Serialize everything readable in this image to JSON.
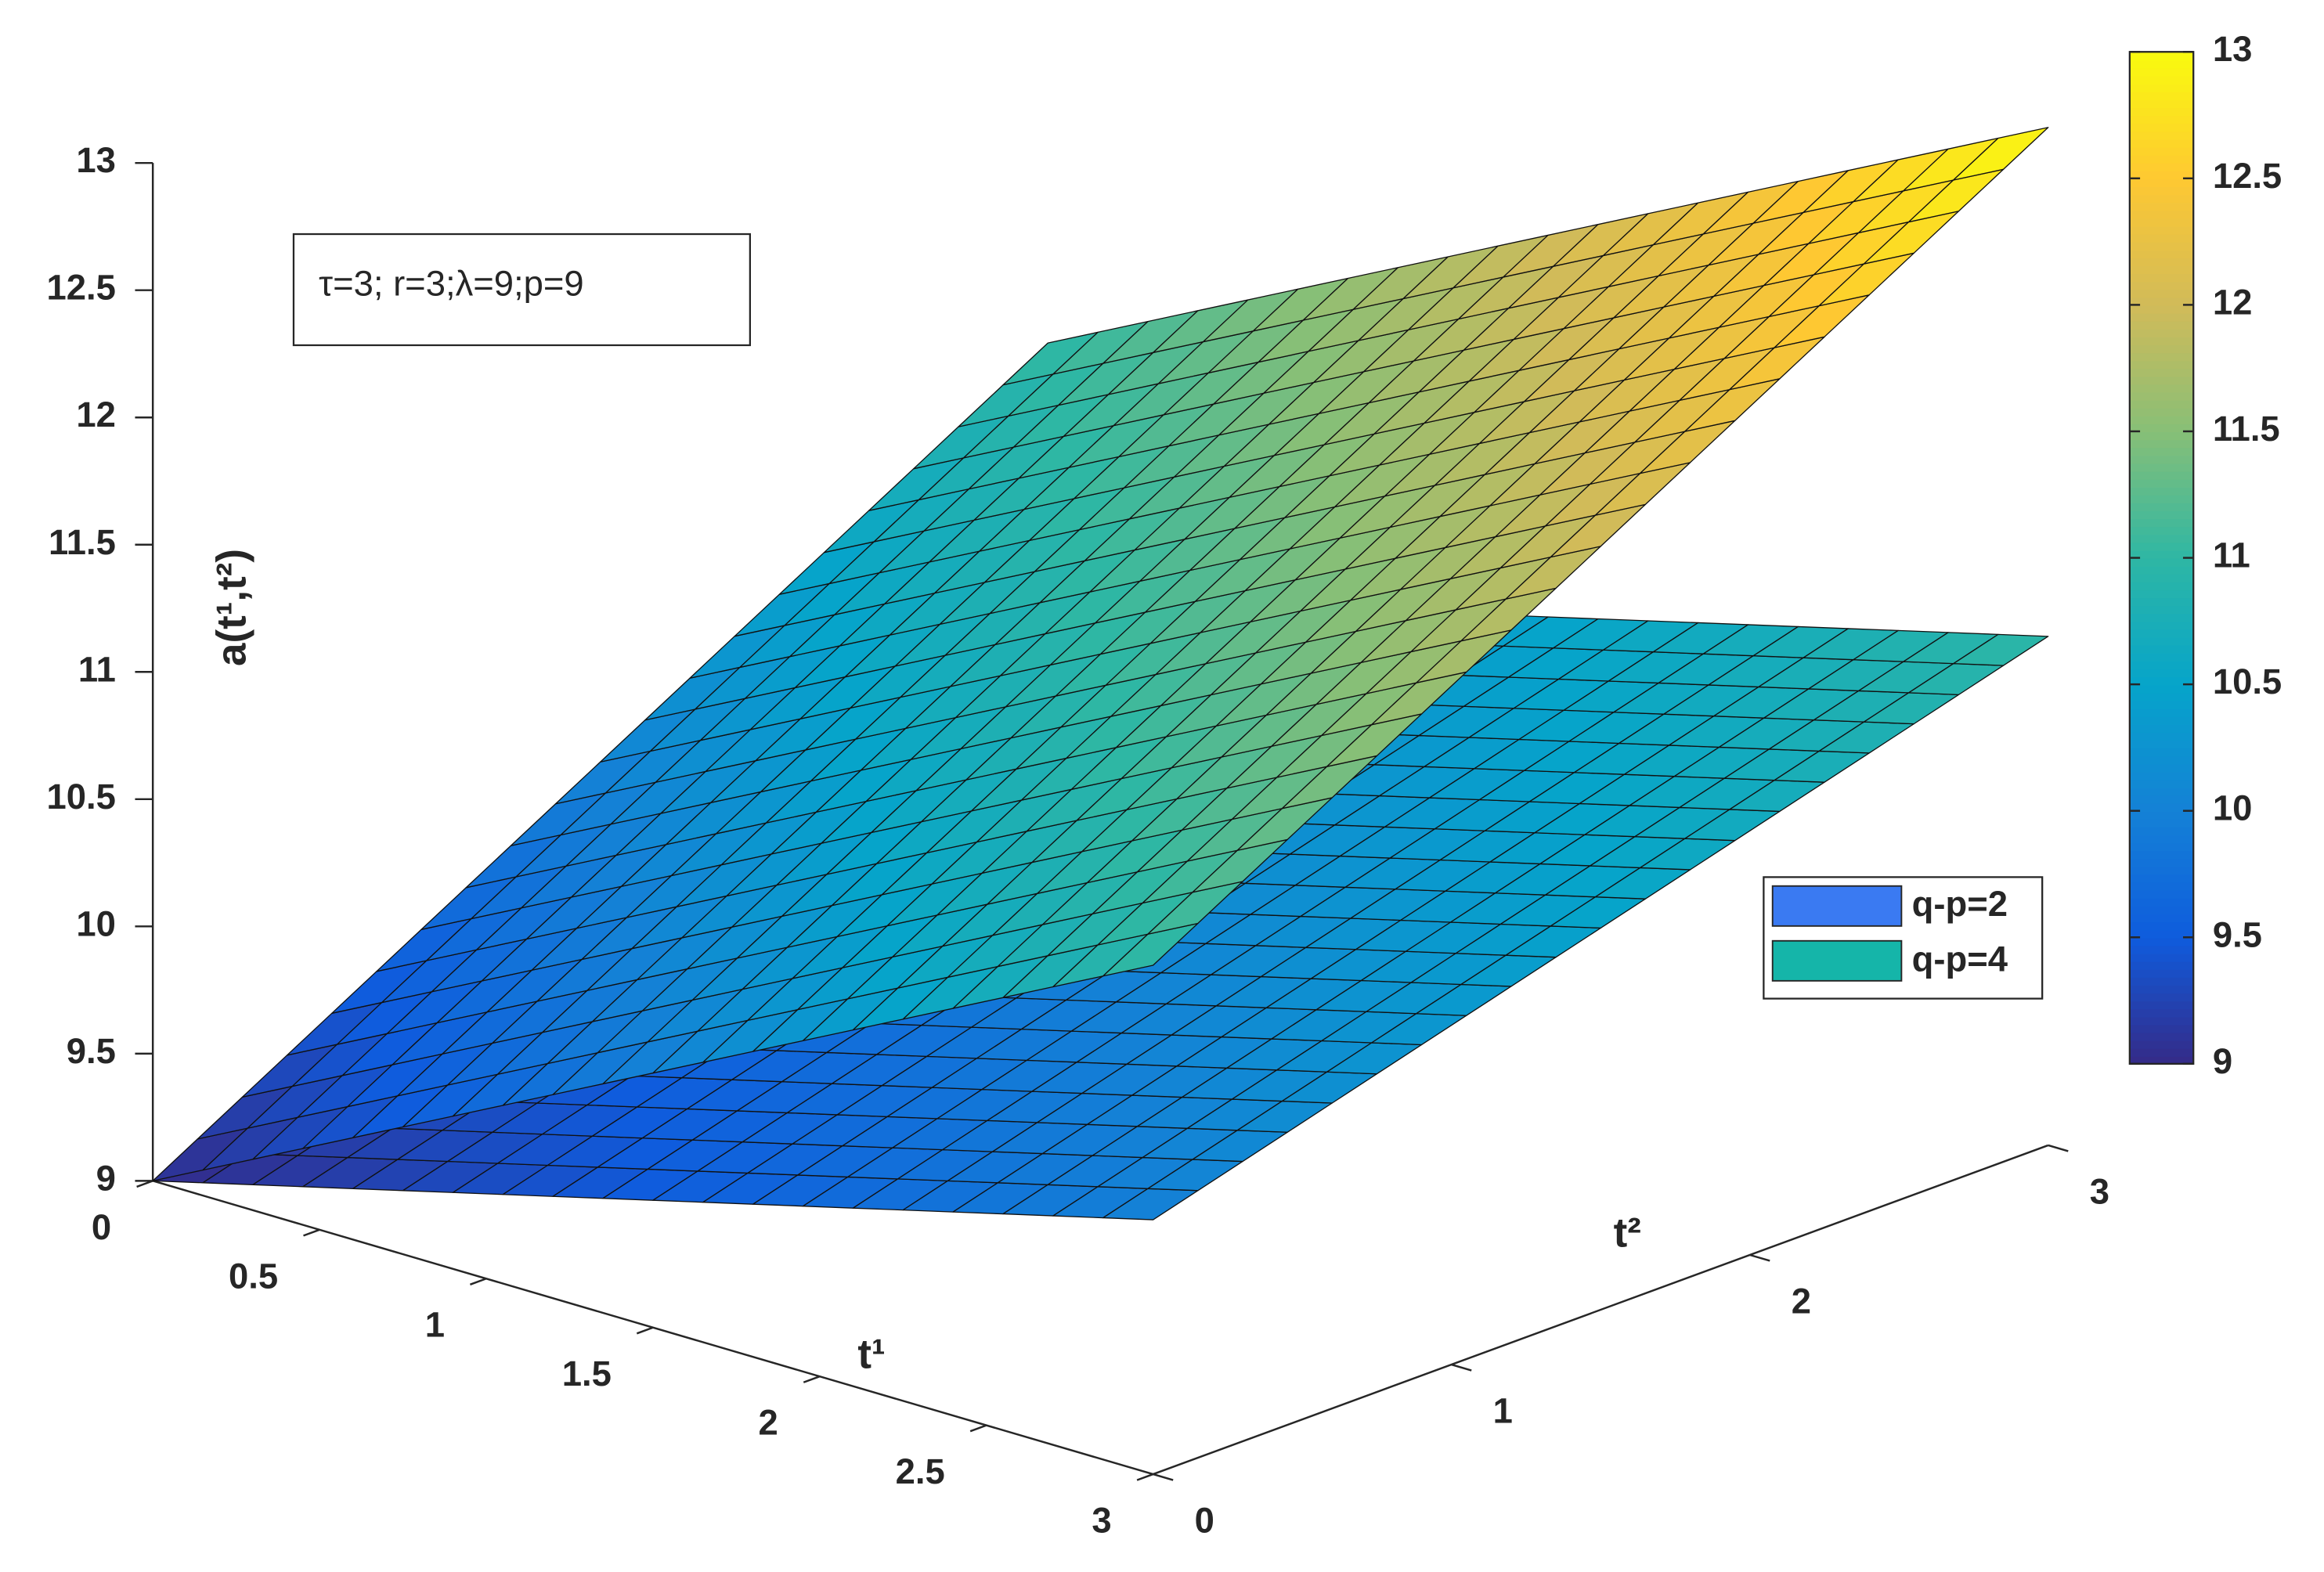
{
  "chart_data": {
    "type": "surface",
    "xlabel": "t¹",
    "ylabel": "t²",
    "zlabel": "a(t¹,t²)",
    "annotation": "τ=3; r=3;λ=9;p=9",
    "xlim": [
      0,
      3
    ],
    "ylim": [
      0,
      3
    ],
    "zlim": [
      9,
      13
    ],
    "xticks": [
      0,
      0.5,
      1,
      1.5,
      2,
      2.5,
      3
    ],
    "yticks": [
      0,
      1,
      2,
      3
    ],
    "zticks": [
      9,
      9.5,
      10,
      10.5,
      11,
      11.5,
      12,
      12.5,
      13
    ],
    "grid": false,
    "legend": "east",
    "clim": [
      9,
      13
    ],
    "cticks": [
      9,
      9.5,
      10,
      10.5,
      11,
      11.5,
      12,
      12.5,
      13
    ],
    "colormap": [
      "#352a87",
      "#0f5cdd",
      "#1481d6",
      "#06a4ca",
      "#2eb7a4",
      "#87bf77",
      "#d1bb59",
      "#fec832",
      "#f9fb0e"
    ],
    "x": [
      0,
      0.15,
      0.3,
      0.45,
      0.6,
      0.75,
      0.9,
      1.05,
      1.2,
      1.35,
      1.5,
      1.65,
      1.8,
      1.95,
      2.1,
      2.25,
      2.4,
      2.55,
      2.7,
      2.85,
      3
    ],
    "y": [
      0,
      0.15,
      0.3,
      0.45,
      0.6,
      0.75,
      0.9,
      1.05,
      1.2,
      1.35,
      1.5,
      1.65,
      1.8,
      1.95,
      2.1,
      2.25,
      2.4,
      2.55,
      2.7,
      2.85,
      3
    ],
    "series": [
      {
        "name": "q-p=2",
        "color": "#3a7af2",
        "z": [
          [
            9,
            9.05,
            9.1,
            9.15,
            9.2,
            9.25,
            9.3,
            9.35,
            9.4,
            9.45,
            9.5,
            9.55,
            9.6,
            9.65,
            9.7,
            9.75,
            9.8,
            9.85,
            9.9,
            9.95,
            10
          ],
          [
            9.05,
            9.1,
            9.15,
            9.2,
            9.25,
            9.3,
            9.35,
            9.4,
            9.45,
            9.5,
            9.55,
            9.6,
            9.65,
            9.7,
            9.75,
            9.8,
            9.85,
            9.9,
            9.95,
            10,
            10.05
          ],
          [
            9.1,
            9.15,
            9.2,
            9.25,
            9.3,
            9.35,
            9.4,
            9.45,
            9.5,
            9.55,
            9.6,
            9.65,
            9.7,
            9.75,
            9.8,
            9.85,
            9.9,
            9.95,
            10,
            10.05,
            10.1
          ],
          [
            9.15,
            9.2,
            9.25,
            9.3,
            9.35,
            9.4,
            9.45,
            9.5,
            9.55,
            9.6,
            9.65,
            9.7,
            9.75,
            9.8,
            9.85,
            9.9,
            9.95,
            10,
            10.05,
            10.1,
            10.15
          ],
          [
            9.2,
            9.25,
            9.3,
            9.35,
            9.4,
            9.45,
            9.5,
            9.55,
            9.6,
            9.65,
            9.7,
            9.75,
            9.8,
            9.85,
            9.9,
            9.95,
            10,
            10.05,
            10.1,
            10.15,
            10.2
          ],
          [
            9.25,
            9.3,
            9.35,
            9.4,
            9.45,
            9.5,
            9.55,
            9.6,
            9.65,
            9.7,
            9.75,
            9.8,
            9.85,
            9.9,
            9.95,
            10,
            10.05,
            10.1,
            10.15,
            10.2,
            10.25
          ],
          [
            9.3,
            9.35,
            9.4,
            9.45,
            9.5,
            9.55,
            9.6,
            9.65,
            9.7,
            9.75,
            9.8,
            9.85,
            9.9,
            9.95,
            10,
            10.05,
            10.1,
            10.15,
            10.2,
            10.25,
            10.3
          ],
          [
            9.35,
            9.4,
            9.45,
            9.5,
            9.55,
            9.6,
            9.65,
            9.7,
            9.75,
            9.8,
            9.85,
            9.9,
            9.95,
            10,
            10.05,
            10.1,
            10.15,
            10.2,
            10.25,
            10.3,
            10.35
          ],
          [
            9.4,
            9.45,
            9.5,
            9.55,
            9.6,
            9.65,
            9.7,
            9.75,
            9.8,
            9.85,
            9.9,
            9.95,
            10,
            10.05,
            10.1,
            10.15,
            10.2,
            10.25,
            10.3,
            10.35,
            10.4
          ],
          [
            9.45,
            9.5,
            9.55,
            9.6,
            9.65,
            9.7,
            9.75,
            9.8,
            9.85,
            9.9,
            9.95,
            10,
            10.05,
            10.1,
            10.15,
            10.2,
            10.25,
            10.3,
            10.35,
            10.4,
            10.45
          ],
          [
            9.5,
            9.55,
            9.6,
            9.65,
            9.7,
            9.75,
            9.8,
            9.85,
            9.9,
            9.95,
            10,
            10.05,
            10.1,
            10.15,
            10.2,
            10.25,
            10.3,
            10.35,
            10.4,
            10.45,
            10.5
          ],
          [
            9.55,
            9.6,
            9.65,
            9.7,
            9.75,
            9.8,
            9.85,
            9.9,
            9.95,
            10,
            10.05,
            10.1,
            10.15,
            10.2,
            10.25,
            10.3,
            10.35,
            10.4,
            10.45,
            10.5,
            10.55
          ],
          [
            9.6,
            9.65,
            9.7,
            9.75,
            9.8,
            9.85,
            9.9,
            9.95,
            10,
            10.05,
            10.1,
            10.15,
            10.2,
            10.25,
            10.3,
            10.35,
            10.4,
            10.45,
            10.5,
            10.55,
            10.6
          ],
          [
            9.65,
            9.7,
            9.75,
            9.8,
            9.85,
            9.9,
            9.95,
            10,
            10.05,
            10.1,
            10.15,
            10.2,
            10.25,
            10.3,
            10.35,
            10.4,
            10.45,
            10.5,
            10.55,
            10.6,
            10.65
          ],
          [
            9.7,
            9.75,
            9.8,
            9.85,
            9.9,
            9.95,
            10,
            10.05,
            10.1,
            10.15,
            10.2,
            10.25,
            10.3,
            10.35,
            10.4,
            10.45,
            10.5,
            10.55,
            10.6,
            10.65,
            10.7
          ],
          [
            9.75,
            9.8,
            9.85,
            9.9,
            9.95,
            10,
            10.05,
            10.1,
            10.15,
            10.2,
            10.25,
            10.3,
            10.35,
            10.4,
            10.45,
            10.5,
            10.55,
            10.6,
            10.65,
            10.7,
            10.75
          ],
          [
            9.8,
            9.85,
            9.9,
            9.95,
            10,
            10.05,
            10.1,
            10.15,
            10.2,
            10.25,
            10.3,
            10.35,
            10.4,
            10.45,
            10.5,
            10.55,
            10.6,
            10.65,
            10.7,
            10.75,
            10.8
          ],
          [
            9.85,
            9.9,
            9.95,
            10,
            10.05,
            10.1,
            10.15,
            10.2,
            10.25,
            10.3,
            10.35,
            10.4,
            10.45,
            10.5,
            10.55,
            10.6,
            10.65,
            10.7,
            10.75,
            10.8,
            10.85
          ],
          [
            9.9,
            9.95,
            10,
            10.05,
            10.1,
            10.15,
            10.2,
            10.25,
            10.3,
            10.35,
            10.4,
            10.45,
            10.5,
            10.55,
            10.6,
            10.65,
            10.7,
            10.75,
            10.8,
            10.85,
            10.9
          ],
          [
            9.95,
            10,
            10.05,
            10.1,
            10.15,
            10.2,
            10.25,
            10.3,
            10.35,
            10.4,
            10.45,
            10.5,
            10.55,
            10.6,
            10.65,
            10.7,
            10.75,
            10.8,
            10.85,
            10.9,
            10.95
          ],
          [
            10,
            10.05,
            10.1,
            10.15,
            10.2,
            10.25,
            10.3,
            10.35,
            10.4,
            10.45,
            10.5,
            10.55,
            10.6,
            10.65,
            10.7,
            10.75,
            10.8,
            10.85,
            10.9,
            10.95,
            11
          ]
        ]
      },
      {
        "name": "q-p=4",
        "color": "#15b5a9",
        "z": [
          [
            9,
            9.1,
            9.2,
            9.3,
            9.4,
            9.5,
            9.6,
            9.7,
            9.8,
            9.9,
            10,
            10.1,
            10.2,
            10.3,
            10.4,
            10.5,
            10.6,
            10.7,
            10.8,
            10.9,
            11
          ],
          [
            9.1,
            9.2,
            9.3,
            9.4,
            9.5,
            9.6,
            9.7,
            9.8,
            9.9,
            10,
            10.1,
            10.2,
            10.3,
            10.4,
            10.5,
            10.6,
            10.7,
            10.8,
            10.9,
            11,
            11.1
          ],
          [
            9.2,
            9.3,
            9.4,
            9.5,
            9.6,
            9.7,
            9.8,
            9.9,
            10,
            10.1,
            10.2,
            10.3,
            10.4,
            10.5,
            10.6,
            10.7,
            10.8,
            10.9,
            11,
            11.1,
            11.2
          ],
          [
            9.3,
            9.4,
            9.5,
            9.6,
            9.7,
            9.8,
            9.9,
            10,
            10.1,
            10.2,
            10.3,
            10.4,
            10.5,
            10.6,
            10.7,
            10.8,
            10.9,
            11,
            11.1,
            11.2,
            11.3
          ],
          [
            9.4,
            9.5,
            9.6,
            9.7,
            9.8,
            9.9,
            10,
            10.1,
            10.2,
            10.3,
            10.4,
            10.5,
            10.6,
            10.7,
            10.8,
            10.9,
            11,
            11.1,
            11.2,
            11.3,
            11.4
          ],
          [
            9.5,
            9.6,
            9.7,
            9.8,
            9.9,
            10,
            10.1,
            10.2,
            10.3,
            10.4,
            10.5,
            10.6,
            10.7,
            10.8,
            10.9,
            11,
            11.1,
            11.2,
            11.3,
            11.4,
            11.5
          ],
          [
            9.6,
            9.7,
            9.8,
            9.9,
            10,
            10.1,
            10.2,
            10.3,
            10.4,
            10.5,
            10.6,
            10.7,
            10.8,
            10.9,
            11,
            11.1,
            11.2,
            11.3,
            11.4,
            11.5,
            11.6
          ],
          [
            9.7,
            9.8,
            9.9,
            10,
            10.1,
            10.2,
            10.3,
            10.4,
            10.5,
            10.6,
            10.7,
            10.8,
            10.9,
            11,
            11.1,
            11.2,
            11.3,
            11.4,
            11.5,
            11.6,
            11.7
          ],
          [
            9.8,
            9.9,
            10,
            10.1,
            10.2,
            10.3,
            10.4,
            10.5,
            10.6,
            10.7,
            10.8,
            10.9,
            11,
            11.1,
            11.2,
            11.3,
            11.4,
            11.5,
            11.6,
            11.7,
            11.8
          ],
          [
            9.9,
            10,
            10.1,
            10.2,
            10.3,
            10.4,
            10.5,
            10.6,
            10.7,
            10.8,
            10.9,
            11,
            11.1,
            11.2,
            11.3,
            11.4,
            11.5,
            11.6,
            11.7,
            11.8,
            11.9
          ],
          [
            10,
            10.1,
            10.2,
            10.3,
            10.4,
            10.5,
            10.6,
            10.7,
            10.8,
            10.9,
            11,
            11.1,
            11.2,
            11.3,
            11.4,
            11.5,
            11.6,
            11.7,
            11.8,
            11.9,
            12
          ],
          [
            10.1,
            10.2,
            10.3,
            10.4,
            10.5,
            10.6,
            10.7,
            10.8,
            10.9,
            11,
            11.1,
            11.2,
            11.3,
            11.4,
            11.5,
            11.6,
            11.7,
            11.8,
            11.9,
            12,
            12.1
          ],
          [
            10.2,
            10.3,
            10.4,
            10.5,
            10.6,
            10.7,
            10.8,
            10.9,
            11,
            11.1,
            11.2,
            11.3,
            11.4,
            11.5,
            11.6,
            11.7,
            11.8,
            11.9,
            12,
            12.1,
            12.2
          ],
          [
            10.3,
            10.4,
            10.5,
            10.6,
            10.7,
            10.8,
            10.9,
            11,
            11.1,
            11.2,
            11.3,
            11.4,
            11.5,
            11.6,
            11.7,
            11.8,
            11.9,
            12,
            12.1,
            12.2,
            12.3
          ],
          [
            10.4,
            10.5,
            10.6,
            10.7,
            10.8,
            10.9,
            11,
            11.1,
            11.2,
            11.3,
            11.4,
            11.5,
            11.6,
            11.7,
            11.8,
            11.9,
            12,
            12.1,
            12.2,
            12.3,
            12.4
          ],
          [
            10.5,
            10.6,
            10.7,
            10.8,
            10.9,
            11,
            11.1,
            11.2,
            11.3,
            11.4,
            11.5,
            11.6,
            11.7,
            11.8,
            11.9,
            12,
            12.1,
            12.2,
            12.3,
            12.4,
            12.5
          ],
          [
            10.6,
            10.7,
            10.8,
            10.9,
            11,
            11.1,
            11.2,
            11.3,
            11.4,
            11.5,
            11.6,
            11.7,
            11.8,
            11.9,
            12,
            12.1,
            12.2,
            12.3,
            12.4,
            12.5,
            12.6
          ],
          [
            10.7,
            10.8,
            10.9,
            11,
            11.1,
            11.2,
            11.3,
            11.4,
            11.5,
            11.6,
            11.7,
            11.8,
            11.9,
            12,
            12.1,
            12.2,
            12.3,
            12.4,
            12.5,
            12.6,
            12.7
          ],
          [
            10.8,
            10.9,
            11,
            11.1,
            11.2,
            11.3,
            11.4,
            11.5,
            11.6,
            11.7,
            11.8,
            11.9,
            12,
            12.1,
            12.2,
            12.3,
            12.4,
            12.5,
            12.6,
            12.7,
            12.8
          ],
          [
            10.9,
            11,
            11.1,
            11.2,
            11.3,
            11.4,
            11.5,
            11.6,
            11.7,
            11.8,
            11.9,
            12,
            12.1,
            12.2,
            12.3,
            12.4,
            12.5,
            12.6,
            12.7,
            12.8,
            12.9
          ],
          [
            11,
            11.1,
            11.2,
            11.3,
            11.4,
            11.5,
            11.6,
            11.7,
            11.8,
            11.9,
            12,
            12.1,
            12.2,
            12.3,
            12.4,
            12.5,
            12.6,
            12.7,
            12.8,
            12.9,
            13
          ]
        ]
      }
    ]
  }
}
